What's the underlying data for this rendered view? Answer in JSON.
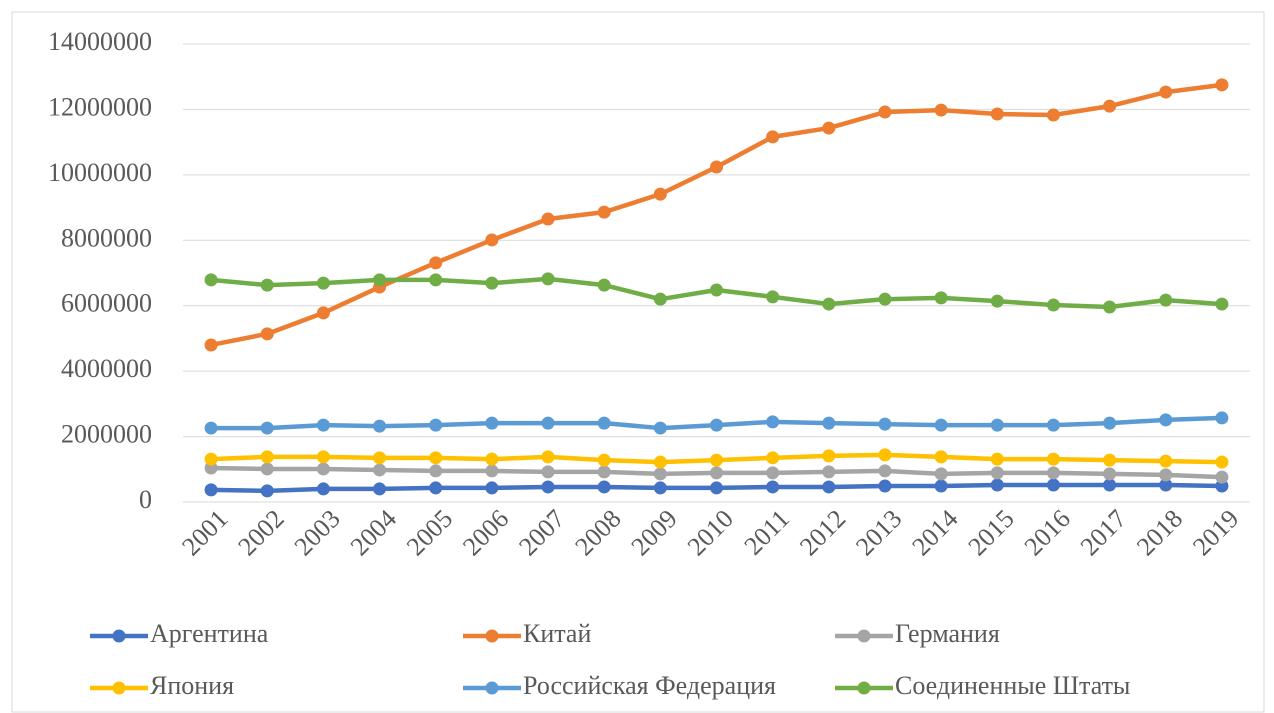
{
  "chart_data": {
    "type": "line",
    "categories": [
      "2001",
      "2002",
      "2003",
      "2004",
      "2005",
      "2006",
      "2007",
      "2008",
      "2009",
      "2010",
      "2011",
      "2012",
      "2013",
      "2014",
      "2015",
      "2016",
      "2017",
      "2018",
      "2019"
    ],
    "series": [
      {
        "name": "Аргентина",
        "color": "#4472c4",
        "values": [
          370000,
          340000,
          400000,
          400000,
          430000,
          430000,
          460000,
          460000,
          430000,
          430000,
          460000,
          460000,
          490000,
          490000,
          520000,
          520000,
          520000,
          520000,
          490000
        ]
      },
      {
        "name": "Китай",
        "color": "#ed7d31",
        "values": [
          4800000,
          5140000,
          5780000,
          6570000,
          7310000,
          8010000,
          8650000,
          8860000,
          9410000,
          10240000,
          11160000,
          11430000,
          11920000,
          11980000,
          11860000,
          11830000,
          12100000,
          12530000,
          12750000
        ]
      },
      {
        "name": "Германия",
        "color": "#a5a5a5",
        "values": [
          1040000,
          1010000,
          1010000,
          980000,
          950000,
          950000,
          920000,
          920000,
          860000,
          890000,
          890000,
          920000,
          950000,
          860000,
          890000,
          890000,
          860000,
          830000,
          760000
        ]
      },
      {
        "name": "Япония",
        "color": "#ffc000",
        "values": [
          1310000,
          1380000,
          1380000,
          1350000,
          1350000,
          1310000,
          1380000,
          1280000,
          1220000,
          1280000,
          1350000,
          1410000,
          1440000,
          1380000,
          1310000,
          1310000,
          1280000,
          1250000,
          1220000
        ]
      },
      {
        "name": "Российская Федерация",
        "color": "#5b9bd5",
        "values": [
          2260000,
          2260000,
          2350000,
          2320000,
          2350000,
          2410000,
          2410000,
          2410000,
          2260000,
          2350000,
          2450000,
          2410000,
          2380000,
          2350000,
          2350000,
          2350000,
          2410000,
          2510000,
          2570000
        ]
      },
      {
        "name": "Соединенные Штаты",
        "color": "#70ad47",
        "values": [
          6790000,
          6630000,
          6690000,
          6790000,
          6790000,
          6690000,
          6820000,
          6630000,
          6200000,
          6480000,
          6270000,
          6050000,
          6200000,
          6240000,
          6140000,
          6020000,
          5960000,
          6170000,
          6050000
        ]
      }
    ],
    "ylim": [
      0,
      14000000
    ],
    "yticks": [
      0,
      2000000,
      4000000,
      6000000,
      8000000,
      10000000,
      12000000,
      14000000
    ],
    "grid": true,
    "legend": "bottom"
  }
}
